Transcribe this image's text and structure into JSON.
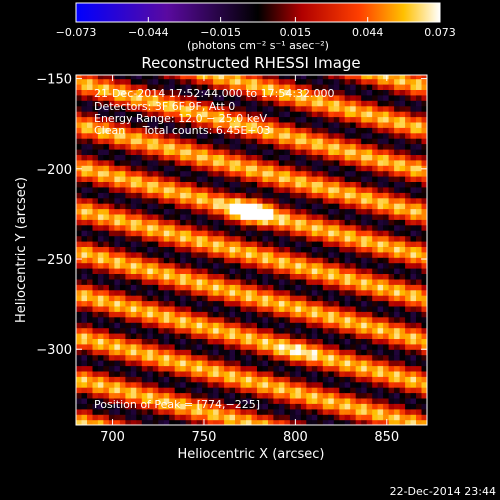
{
  "chart_data": {
    "type": "heatmap",
    "title": "Reconstructed RHESSI Image",
    "xlabel": "Heliocentric X (arcsec)",
    "ylabel": "Heliocentric Y (arcsec)",
    "xlim": [
      680,
      872
    ],
    "ylim": [
      -342,
      -148
    ],
    "xticks": [
      700,
      750,
      800,
      850
    ],
    "yticks": [
      -150,
      -200,
      -250,
      -300
    ],
    "xtick_labels": [
      "700",
      "750",
      "800",
      "850"
    ],
    "ytick_labels": [
      "−150",
      "−200",
      "−250",
      "−300"
    ],
    "colorbar": {
      "min": -0.073,
      "max": 0.073,
      "ticks": [
        -0.073,
        -0.044,
        -0.015,
        0.015,
        0.044,
        0.073
      ],
      "tick_labels": [
        "−0.073",
        "−0.044",
        "−0.015",
        "0.015",
        "0.044",
        "0.073"
      ],
      "units_label": "(photons cm⁻² s⁻¹ asec⁻²)"
    },
    "annotations": [
      "21-Dec-2014 17:52:44.000 to 17:54:32.000",
      "Detectors: 3F 6F 9F, Att 0",
      "Energy Range: 12.0 − 25.0 keV",
      "Clean     Total counts: 6.45E+03"
    ],
    "peak_label": "Position of Peak = [774,−225]",
    "peak": [
      774,
      -225
    ],
    "secondary_source": [
      798,
      -303
    ],
    "grid": false,
    "legend": "colorbar-top"
  },
  "timestamp": "22-Dec-2014 23:44"
}
